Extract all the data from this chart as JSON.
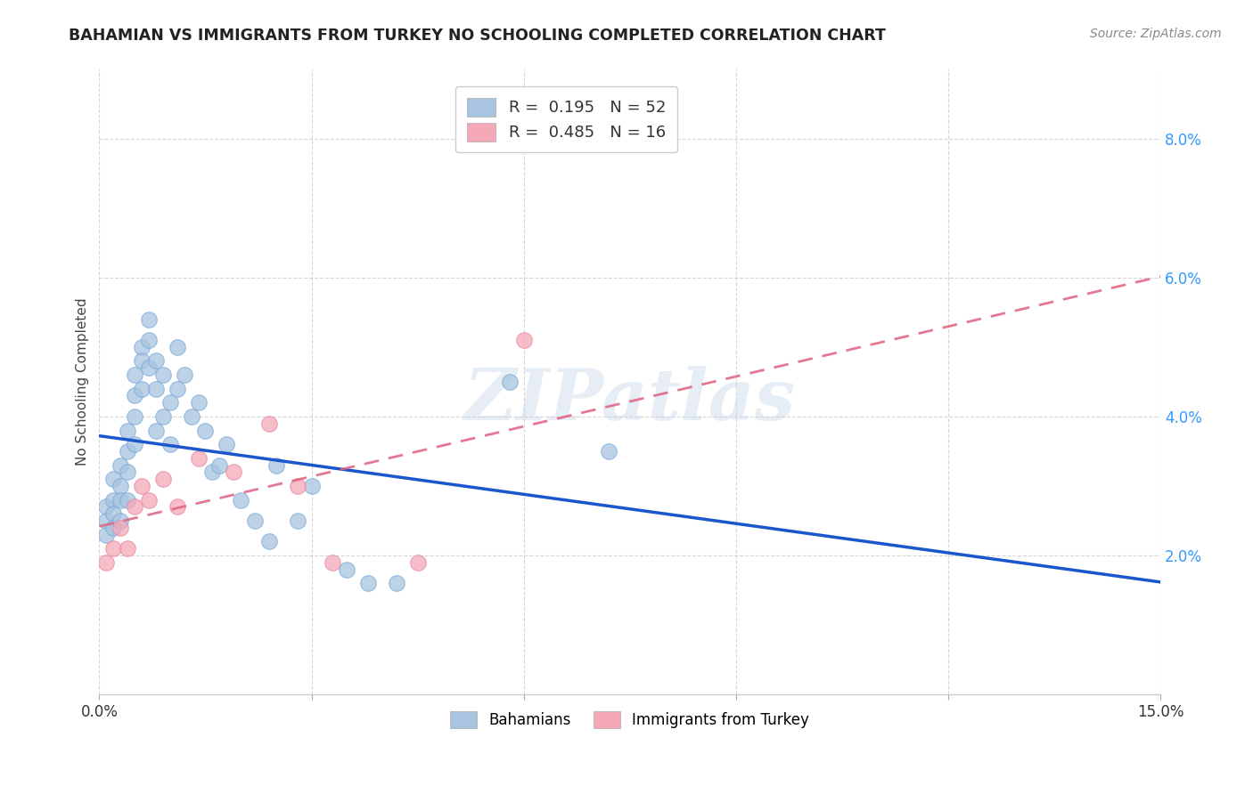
{
  "title": "BAHAMIAN VS IMMIGRANTS FROM TURKEY NO SCHOOLING COMPLETED CORRELATION CHART",
  "source": "Source: ZipAtlas.com",
  "ylabel": "No Schooling Completed",
  "xlim": [
    0.0,
    0.15
  ],
  "ylim": [
    0.0,
    0.09
  ],
  "xtick_positions": [
    0.0,
    0.03,
    0.06,
    0.09,
    0.12,
    0.15
  ],
  "xtick_labels": [
    "0.0%",
    "",
    "",
    "",
    "",
    "15.0%"
  ],
  "ytick_positions": [
    0.02,
    0.04,
    0.06,
    0.08
  ],
  "ytick_labels": [
    "2.0%",
    "4.0%",
    "6.0%",
    "8.0%"
  ],
  "bahamian_color": "#a8c4e0",
  "turkey_color": "#f4a8b8",
  "bahamian_line_color": "#1a56cc",
  "turkey_line_color": "#e06080",
  "legend_bahamian": "Bahamians",
  "legend_turkey": "Immigrants from Turkey",
  "watermark": "ZIPatlas",
  "bahamian_R": 0.195,
  "bahamian_N": 52,
  "turkey_R": 0.485,
  "turkey_N": 16,
  "bahamian_x": [
    0.001,
    0.001,
    0.001,
    0.002,
    0.002,
    0.002,
    0.002,
    0.003,
    0.003,
    0.003,
    0.003,
    0.004,
    0.004,
    0.004,
    0.004,
    0.005,
    0.005,
    0.005,
    0.005,
    0.006,
    0.006,
    0.006,
    0.007,
    0.007,
    0.007,
    0.008,
    0.008,
    0.008,
    0.009,
    0.009,
    0.01,
    0.01,
    0.011,
    0.011,
    0.012,
    0.013,
    0.014,
    0.015,
    0.016,
    0.017,
    0.018,
    0.02,
    0.022,
    0.024,
    0.025,
    0.028,
    0.03,
    0.035,
    0.038,
    0.042,
    0.058,
    0.072
  ],
  "bahamian_y": [
    0.027,
    0.025,
    0.023,
    0.031,
    0.028,
    0.026,
    0.024,
    0.033,
    0.03,
    0.028,
    0.025,
    0.038,
    0.035,
    0.032,
    0.028,
    0.046,
    0.043,
    0.04,
    0.036,
    0.05,
    0.048,
    0.044,
    0.054,
    0.051,
    0.047,
    0.048,
    0.044,
    0.038,
    0.046,
    0.04,
    0.042,
    0.036,
    0.05,
    0.044,
    0.046,
    0.04,
    0.042,
    0.038,
    0.032,
    0.033,
    0.036,
    0.028,
    0.025,
    0.022,
    0.033,
    0.025,
    0.03,
    0.018,
    0.016,
    0.016,
    0.045,
    0.035
  ],
  "turkey_x": [
    0.001,
    0.002,
    0.003,
    0.004,
    0.005,
    0.006,
    0.007,
    0.009,
    0.011,
    0.014,
    0.019,
    0.024,
    0.028,
    0.033,
    0.045,
    0.06
  ],
  "turkey_y": [
    0.019,
    0.021,
    0.024,
    0.021,
    0.027,
    0.03,
    0.028,
    0.031,
    0.027,
    0.034,
    0.032,
    0.039,
    0.03,
    0.019,
    0.019,
    0.051
  ],
  "bahamian_line_x0": 0.0,
  "bahamian_line_x1": 0.15,
  "turkey_line_x0": 0.0,
  "turkey_line_x1": 0.15
}
